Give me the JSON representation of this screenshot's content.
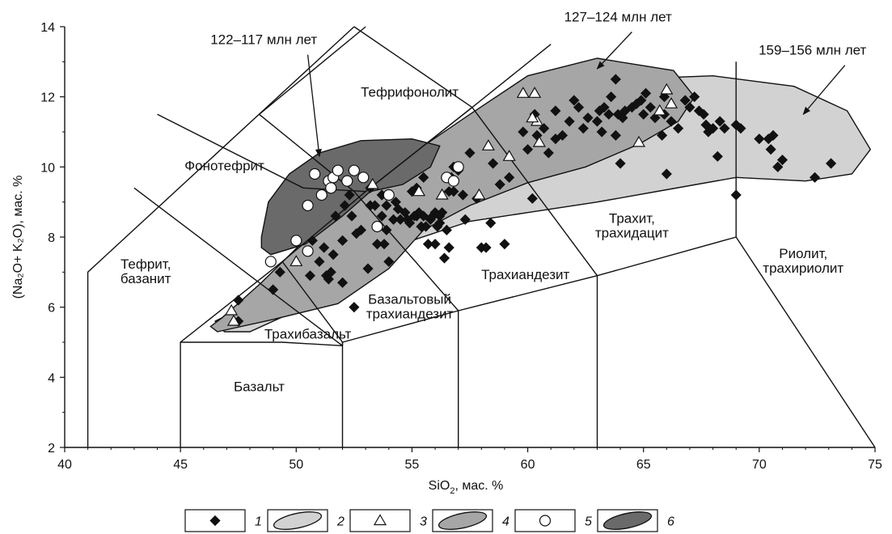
{
  "chart_data": {
    "type": "scatter",
    "xlim": [
      40,
      75
    ],
    "ylim": [
      2,
      14
    ],
    "x_ticks": [
      40,
      45,
      50,
      55,
      60,
      65,
      70,
      75
    ],
    "y_ticks": [
      2,
      4,
      6,
      8,
      10,
      12,
      14
    ],
    "xlabel": {
      "main": "SiO",
      "sub": "2",
      "rest": ", мас. %"
    },
    "ylabel": "(Na₂O+ K₂O), мас. %",
    "field_labels": [
      {
        "lines": [
          "Тефрифонолит"
        ],
        "x": 54.9,
        "y": 12.0
      },
      {
        "lines": [
          "Фонотефрит"
        ],
        "x": 46.9,
        "y": 9.9
      },
      {
        "lines": [
          "Тефрит,",
          "базанит"
        ],
        "x": 43.5,
        "y": 7.1
      },
      {
        "lines": [
          "Трахит,",
          "трахидацит"
        ],
        "x": 64.5,
        "y": 8.4
      },
      {
        "lines": [
          "Риолит,",
          "трахириолит"
        ],
        "x": 71.9,
        "y": 7.4
      },
      {
        "lines": [
          "Трахиандезит"
        ],
        "x": 59.9,
        "y": 6.8
      },
      {
        "lines": [
          "Базальтовый",
          "трахиандезит"
        ],
        "x": 54.9,
        "y": 6.1
      },
      {
        "lines": [
          "Трахибазальт"
        ],
        "x": 50.5,
        "y": 5.1
      },
      {
        "lines": [
          "Базальт"
        ],
        "x": 48.4,
        "y": 3.6
      }
    ],
    "annotations": [
      {
        "text": "122–117 млн лет",
        "x": 48.6,
        "y": 13.5,
        "arrow_to": [
          51.0,
          10.3
        ],
        "line_from": [
          50.5,
          13.2
        ]
      },
      {
        "text": "127–124 млн лет",
        "x": 63.9,
        "y": 14.15,
        "arrow_to": [
          63.0,
          12.8
        ],
        "line_from": [
          64.5,
          13.85
        ]
      },
      {
        "text": "159–156 млн лет",
        "x": 72.3,
        "y": 13.2,
        "arrow_to": [
          71.9,
          11.5
        ],
        "line_from": [
          73.7,
          12.9
        ]
      }
    ],
    "regions": [
      {
        "name": "159–156 млн лет",
        "fill": "#d2d2d2",
        "points": [
          [
            46.5,
            5.6
          ],
          [
            49.5,
            6.6
          ],
          [
            52,
            7.3
          ],
          [
            55,
            7.9
          ],
          [
            57.5,
            8.45
          ],
          [
            60,
            8.7
          ],
          [
            63,
            9.0
          ],
          [
            66,
            9.35
          ],
          [
            69,
            9.7
          ],
          [
            72,
            9.6
          ],
          [
            74,
            9.8
          ],
          [
            74.8,
            10.5
          ],
          [
            73.8,
            11.6
          ],
          [
            71.5,
            12.3
          ],
          [
            68,
            12.6
          ],
          [
            64,
            12.5
          ],
          [
            61,
            12.0
          ],
          [
            58.5,
            10.9
          ],
          [
            56,
            9.2
          ],
          [
            53.5,
            7.5
          ],
          [
            51,
            6.2
          ],
          [
            48,
            5.3
          ],
          [
            46.9,
            5.3
          ]
        ]
      },
      {
        "name": "127–124 млн лет",
        "fill": "#a6a6a6",
        "points": [
          [
            46.6,
            5.3
          ],
          [
            49,
            5.65
          ],
          [
            51.8,
            6.1
          ],
          [
            54,
            7.1
          ],
          [
            55.5,
            8.2
          ],
          [
            57.5,
            8.9
          ],
          [
            60,
            9.55
          ],
          [
            62.5,
            10.0
          ],
          [
            64.8,
            10.65
          ],
          [
            66.5,
            11.3
          ],
          [
            67.2,
            12.0
          ],
          [
            66.3,
            12.75
          ],
          [
            63,
            13.1
          ],
          [
            60,
            12.6
          ],
          [
            57.5,
            11.5
          ],
          [
            55.5,
            10.6
          ],
          [
            53,
            9.6
          ],
          [
            50.5,
            8.0
          ],
          [
            48.5,
            6.7
          ],
          [
            46.8,
            5.7
          ],
          [
            46.3,
            5.45
          ]
        ]
      },
      {
        "name": "122–117 млн лет",
        "fill": "#6a6a6a",
        "points": [
          [
            48.5,
            8.0
          ],
          [
            48.8,
            9.0
          ],
          [
            49.7,
            9.8
          ],
          [
            51,
            10.4
          ],
          [
            52.8,
            10.75
          ],
          [
            55,
            10.8
          ],
          [
            56.2,
            10.6
          ],
          [
            55.8,
            10.0
          ],
          [
            54.6,
            9.5
          ],
          [
            53.2,
            9.3
          ],
          [
            52,
            8.6
          ],
          [
            50.4,
            7.8
          ],
          [
            48.9,
            7.5
          ],
          [
            48.5,
            7.7
          ]
        ]
      }
    ],
    "boundaries": [
      [
        [
          41,
          2
        ],
        [
          41,
          7
        ],
        [
          52.5,
          14
        ]
      ],
      [
        [
          43,
          9.4
        ],
        [
          52,
          4.9
        ]
      ],
      [
        [
          45,
          2
        ],
        [
          45,
          5
        ],
        [
          49.4,
          7.3
        ],
        [
          53,
          9.3
        ],
        [
          57.6,
          11.7
        ],
        [
          61,
          13.5
        ]
      ],
      [
        [
          52,
          2
        ],
        [
          52,
          5
        ],
        [
          57,
          5.9
        ],
        [
          63,
          6.9
        ],
        [
          69,
          8
        ],
        [
          69,
          13
        ]
      ],
      [
        [
          57,
          2
        ],
        [
          57,
          5.9
        ]
      ],
      [
        [
          63,
          2
        ],
        [
          63,
          6.9
        ]
      ],
      [
        [
          69,
          8
        ],
        [
          75,
          2
        ]
      ],
      [
        [
          44,
          11.5
        ],
        [
          50.3,
          9.4
        ],
        [
          53,
          9.3
        ],
        [
          57.6,
          11.7
        ]
      ],
      [
        [
          48.4,
          11.5
        ],
        [
          53,
          14
        ]
      ],
      [
        [
          48.4,
          11.5
        ],
        [
          52.5,
          9.3
        ]
      ],
      [
        [
          52.5,
          14
        ],
        [
          57.6,
          11.7
        ]
      ],
      [
        [
          45,
          5
        ],
        [
          49.4,
          5.0
        ],
        [
          52,
          4.9
        ]
      ],
      [
        [
          52.5,
          9.3
        ],
        [
          57,
          5.9
        ]
      ],
      [
        [
          57.6,
          11.7
        ],
        [
          63,
          6.9
        ]
      ],
      [
        [
          49.4,
          7.3
        ],
        [
          52,
          5
        ],
        [
          52,
          4.9
        ]
      ]
    ],
    "series": [
      {
        "name": "1",
        "marker": "diamond",
        "points": [
          [
            47.5,
            5.6
          ],
          [
            47.5,
            6.2
          ],
          [
            49,
            6.5
          ],
          [
            49.3,
            7
          ],
          [
            50.6,
            6.9
          ],
          [
            50.7,
            7.9
          ],
          [
            51,
            7.3
          ],
          [
            51.2,
            7.7
          ],
          [
            51.3,
            6.9
          ],
          [
            51.4,
            6.8
          ],
          [
            51.5,
            7.0
          ],
          [
            51.6,
            7.5
          ],
          [
            51.7,
            8.6
          ],
          [
            52,
            6.7
          ],
          [
            52,
            7.9
          ],
          [
            52.1,
            8.9
          ],
          [
            52.3,
            9.2
          ],
          [
            52.4,
            8.6
          ],
          [
            52.5,
            6.0
          ],
          [
            52.6,
            8.1
          ],
          [
            52.8,
            8.2
          ],
          [
            53.1,
            7.1
          ],
          [
            53.2,
            9.4
          ],
          [
            53.2,
            8.9
          ],
          [
            53.4,
            8.9
          ],
          [
            53.5,
            7.8
          ],
          [
            53.7,
            8.6
          ],
          [
            53.7,
            9.2
          ],
          [
            53.8,
            7.8
          ],
          [
            53.9,
            8.2
          ],
          [
            53.9,
            8.9
          ],
          [
            54,
            7.3
          ],
          [
            54.2,
            8.5
          ],
          [
            54.3,
            9.0
          ],
          [
            54.4,
            8.8
          ],
          [
            54.5,
            8.5
          ],
          [
            54.7,
            8.7
          ],
          [
            54.8,
            8.5
          ],
          [
            54.9,
            8.4
          ],
          [
            55,
            9.3
          ],
          [
            55.1,
            8.6
          ],
          [
            55.2,
            8.6
          ],
          [
            55.2,
            9.4
          ],
          [
            55.3,
            8.7
          ],
          [
            55.4,
            8.3
          ],
          [
            55.5,
            8.6
          ],
          [
            55.5,
            9.7
          ],
          [
            55.6,
            8.3
          ],
          [
            55.7,
            7.8
          ],
          [
            55.8,
            8.5
          ],
          [
            55.9,
            8.6
          ],
          [
            56,
            8.7
          ],
          [
            56,
            7.8
          ],
          [
            56.1,
            8.3
          ],
          [
            56.2,
            8.6
          ],
          [
            56.2,
            8.4
          ],
          [
            56.3,
            8.7
          ],
          [
            56.4,
            7.4
          ],
          [
            56.5,
            8.2
          ],
          [
            56.6,
            7.7
          ],
          [
            56.6,
            9.3
          ],
          [
            56.7,
            9.7
          ],
          [
            56.8,
            10.0
          ],
          [
            56.8,
            9.3
          ],
          [
            57,
            9.9
          ],
          [
            57.2,
            9.2
          ],
          [
            57.3,
            8.5
          ],
          [
            57.5,
            10.4
          ],
          [
            57.8,
            9.1
          ],
          [
            58,
            7.7
          ],
          [
            58.2,
            7.7
          ],
          [
            58.4,
            8.4
          ],
          [
            58.5,
            10.1
          ],
          [
            58.8,
            9.5
          ],
          [
            59,
            7.8
          ],
          [
            59.2,
            9.7
          ],
          [
            59.8,
            11.0
          ],
          [
            60,
            10.5
          ],
          [
            60.2,
            9.1
          ],
          [
            60.3,
            11.5
          ],
          [
            60.4,
            10.9
          ],
          [
            60.7,
            11.1
          ],
          [
            60.9,
            10.4
          ],
          [
            61.2,
            11.6
          ],
          [
            61.2,
            10.8
          ],
          [
            61.5,
            10.9
          ],
          [
            61.8,
            11.3
          ],
          [
            62,
            11.9
          ],
          [
            62.2,
            11.7
          ],
          [
            62.4,
            11.1
          ],
          [
            62.6,
            11.4
          ],
          [
            63,
            11.3
          ],
          [
            63.1,
            11.6
          ],
          [
            63.2,
            11.0
          ],
          [
            63.3,
            11.7
          ],
          [
            63.5,
            11.5
          ],
          [
            63.6,
            12.0
          ],
          [
            63.8,
            10.9
          ],
          [
            63.9,
            11.5
          ],
          [
            64,
            10.1
          ],
          [
            64.1,
            11.4
          ],
          [
            64.2,
            11.6
          ],
          [
            64.5,
            11.7
          ],
          [
            64.7,
            11.8
          ],
          [
            65,
            11.5
          ],
          [
            65.1,
            12.1
          ],
          [
            65.3,
            11.7
          ],
          [
            65.5,
            11.4
          ],
          [
            65.8,
            10.9
          ],
          [
            65.9,
            11.5
          ],
          [
            66,
            9.8
          ],
          [
            66.2,
            11.3
          ],
          [
            66.5,
            11.1
          ],
          [
            66.8,
            11.9
          ],
          [
            67,
            11.7
          ],
          [
            67.2,
            12.0
          ],
          [
            67.4,
            11.6
          ],
          [
            67.6,
            11.5
          ],
          [
            67.7,
            11.2
          ],
          [
            67.8,
            11.0
          ],
          [
            68,
            11.1
          ],
          [
            68.2,
            10.3
          ],
          [
            68.3,
            11.3
          ],
          [
            68.5,
            11.1
          ],
          [
            69,
            11.2
          ],
          [
            69,
            9.2
          ],
          [
            69.2,
            11.1
          ],
          [
            70,
            10.8
          ],
          [
            70.4,
            10.8
          ],
          [
            70.5,
            10.5
          ],
          [
            70.6,
            10.9
          ],
          [
            70.8,
            10.0
          ],
          [
            71,
            10.2
          ],
          [
            72.4,
            9.7
          ],
          [
            73.1,
            10.1
          ],
          [
            63.8,
            12.5
          ],
          [
            65.9,
            12.0
          ],
          [
            64.9,
            11.9
          ]
        ]
      },
      {
        "name": "3",
        "marker": "triangle",
        "points": [
          [
            47.2,
            5.9
          ],
          [
            47.3,
            5.6
          ],
          [
            50,
            7.3
          ],
          [
            55.3,
            9.3
          ],
          [
            56.3,
            9.2
          ],
          [
            57.9,
            9.2
          ],
          [
            58.3,
            10.6
          ],
          [
            59.2,
            10.3
          ],
          [
            59.8,
            12.1
          ],
          [
            60.3,
            12.1
          ],
          [
            60.4,
            11.3
          ],
          [
            60.5,
            10.7
          ],
          [
            60.2,
            11.4
          ],
          [
            64.8,
            10.7
          ],
          [
            65.7,
            11.6
          ],
          [
            66,
            12.2
          ],
          [
            66.2,
            11.8
          ],
          [
            53.3,
            9.5
          ]
        ]
      },
      {
        "name": "5",
        "marker": "circle",
        "points": [
          [
            48.9,
            7.3
          ],
          [
            50,
            7.9
          ],
          [
            50.5,
            7.6
          ],
          [
            50.5,
            8.9
          ],
          [
            51.1,
            9.2
          ],
          [
            51.4,
            9.6
          ],
          [
            51.6,
            9.7
          ],
          [
            51.8,
            9.9
          ],
          [
            52.2,
            9.6
          ],
          [
            52.5,
            9.9
          ],
          [
            52.9,
            9.7
          ],
          [
            53.5,
            8.3
          ],
          [
            54,
            9.2
          ],
          [
            56.5,
            9.7
          ],
          [
            56.8,
            9.6
          ],
          [
            57.0,
            10.0
          ],
          [
            50.8,
            9.8
          ],
          [
            51.5,
            9.4
          ]
        ]
      }
    ],
    "legend": [
      {
        "num": "1",
        "kind": "diamond"
      },
      {
        "num": "2",
        "kind": "region",
        "fill": "#d2d2d2"
      },
      {
        "num": "3",
        "kind": "triangle"
      },
      {
        "num": "4",
        "kind": "region",
        "fill": "#a6a6a6"
      },
      {
        "num": "5",
        "kind": "circle"
      },
      {
        "num": "6",
        "kind": "region",
        "fill": "#6a6a6a"
      }
    ],
    "grid": false
  }
}
